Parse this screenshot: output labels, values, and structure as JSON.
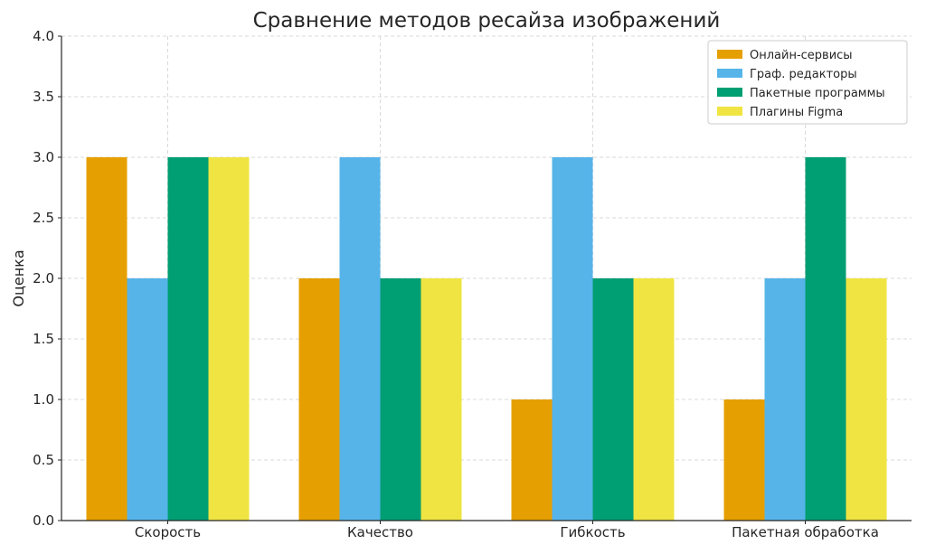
{
  "chart_data": {
    "type": "bar",
    "title": "Сравнение методов ресайза изображений",
    "xlabel": "",
    "ylabel": "Оценка",
    "ylim": [
      0,
      4
    ],
    "yticks": [
      "0.0",
      "0.5",
      "1.0",
      "1.5",
      "2.0",
      "2.5",
      "3.0",
      "3.5",
      "4.0"
    ],
    "grid": true,
    "legend_position": "top-right",
    "categories": [
      "Скорость",
      "Качество",
      "Гибкость",
      "Пакетная обработка"
    ],
    "series": [
      {
        "name": "Онлайн-сервисы",
        "color": "#E69F00",
        "values": [
          3,
          2,
          1,
          1
        ]
      },
      {
        "name": "Граф. редакторы",
        "color": "#56B4E9",
        "values": [
          2,
          3,
          3,
          2
        ]
      },
      {
        "name": "Пакетные программы",
        "color": "#009E73",
        "values": [
          3,
          2,
          2,
          3
        ]
      },
      {
        "name": "Плагины Figma",
        "color": "#F0E442",
        "values": [
          3,
          2,
          2,
          2
        ]
      }
    ]
  }
}
